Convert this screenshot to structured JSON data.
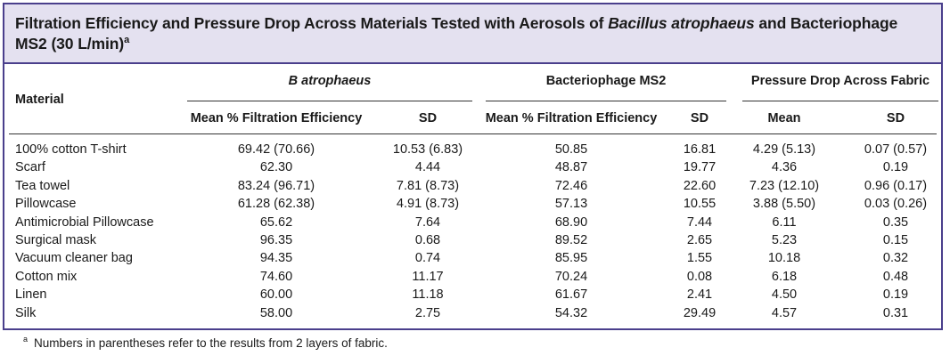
{
  "title": {
    "part1": "Filtration Efficiency and Pressure Drop Across Materials Tested with Aerosols of",
    "italic": "Bacillus atrophaeus",
    "part2": "and Bacteriophage MS2 (30 L/min)",
    "sup": "a"
  },
  "headers": {
    "material": "Material",
    "group_b": "B atrophaeus",
    "group_ms2": "Bacteriophage MS2",
    "group_pd": "Pressure Drop Across Fabric",
    "b_mean": "Mean % Filtration Efficiency",
    "b_sd": "SD",
    "ms2_mean": "Mean % Filtration Efficiency",
    "ms2_sd": "SD",
    "pd_mean": "Mean",
    "pd_sd": "SD"
  },
  "rows": [
    {
      "material": "100% cotton T-shirt",
      "b_mean": "69.42 (70.66)",
      "b_sd": "10.53 (6.83)",
      "ms2_mean": "50.85",
      "ms2_sd": "16.81",
      "pd_mean": "4.29 (5.13)",
      "pd_sd": "0.07 (0.57)"
    },
    {
      "material": "Scarf",
      "b_mean": "62.30",
      "b_sd": "4.44",
      "ms2_mean": "48.87",
      "ms2_sd": "19.77",
      "pd_mean": "4.36",
      "pd_sd": "0.19"
    },
    {
      "material": "Tea towel",
      "b_mean": "83.24 (96.71)",
      "b_sd": "7.81 (8.73)",
      "ms2_mean": "72.46",
      "ms2_sd": "22.60",
      "pd_mean": "7.23 (12.10)",
      "pd_sd": "0.96 (0.17)"
    },
    {
      "material": "Pillowcase",
      "b_mean": "61.28 (62.38)",
      "b_sd": "4.91 (8.73)",
      "ms2_mean": "57.13",
      "ms2_sd": "10.55",
      "pd_mean": "3.88 (5.50)",
      "pd_sd": "0.03 (0.26)"
    },
    {
      "material": "Antimicrobial Pillowcase",
      "b_mean": "65.62",
      "b_sd": "7.64",
      "ms2_mean": "68.90",
      "ms2_sd": "7.44",
      "pd_mean": "6.11",
      "pd_sd": "0.35"
    },
    {
      "material": "Surgical mask",
      "b_mean": "96.35",
      "b_sd": "0.68",
      "ms2_mean": "89.52",
      "ms2_sd": "2.65",
      "pd_mean": "5.23",
      "pd_sd": "0.15"
    },
    {
      "material": "Vacuum cleaner bag",
      "b_mean": "94.35",
      "b_sd": "0.74",
      "ms2_mean": "85.95",
      "ms2_sd": "1.55",
      "pd_mean": "10.18",
      "pd_sd": "0.32"
    },
    {
      "material": "Cotton mix",
      "b_mean": "74.60",
      "b_sd": "11.17",
      "ms2_mean": "70.24",
      "ms2_sd": "0.08",
      "pd_mean": "6.18",
      "pd_sd": "0.48"
    },
    {
      "material": "Linen",
      "b_mean": "60.00",
      "b_sd": "11.18",
      "ms2_mean": "61.67",
      "ms2_sd": "2.41",
      "pd_mean": "4.50",
      "pd_sd": "0.19"
    },
    {
      "material": "Silk",
      "b_mean": "58.00",
      "b_sd": "2.75",
      "ms2_mean": "54.32",
      "ms2_sd": "29.49",
      "pd_mean": "4.57",
      "pd_sd": "0.31"
    }
  ],
  "footnote": {
    "sup": "a",
    "text": "Numbers in parentheses refer to the results from 2 layers of fabric."
  },
  "colors": {
    "border": "#4a3f8c",
    "title_background": "#e4e1f0"
  }
}
